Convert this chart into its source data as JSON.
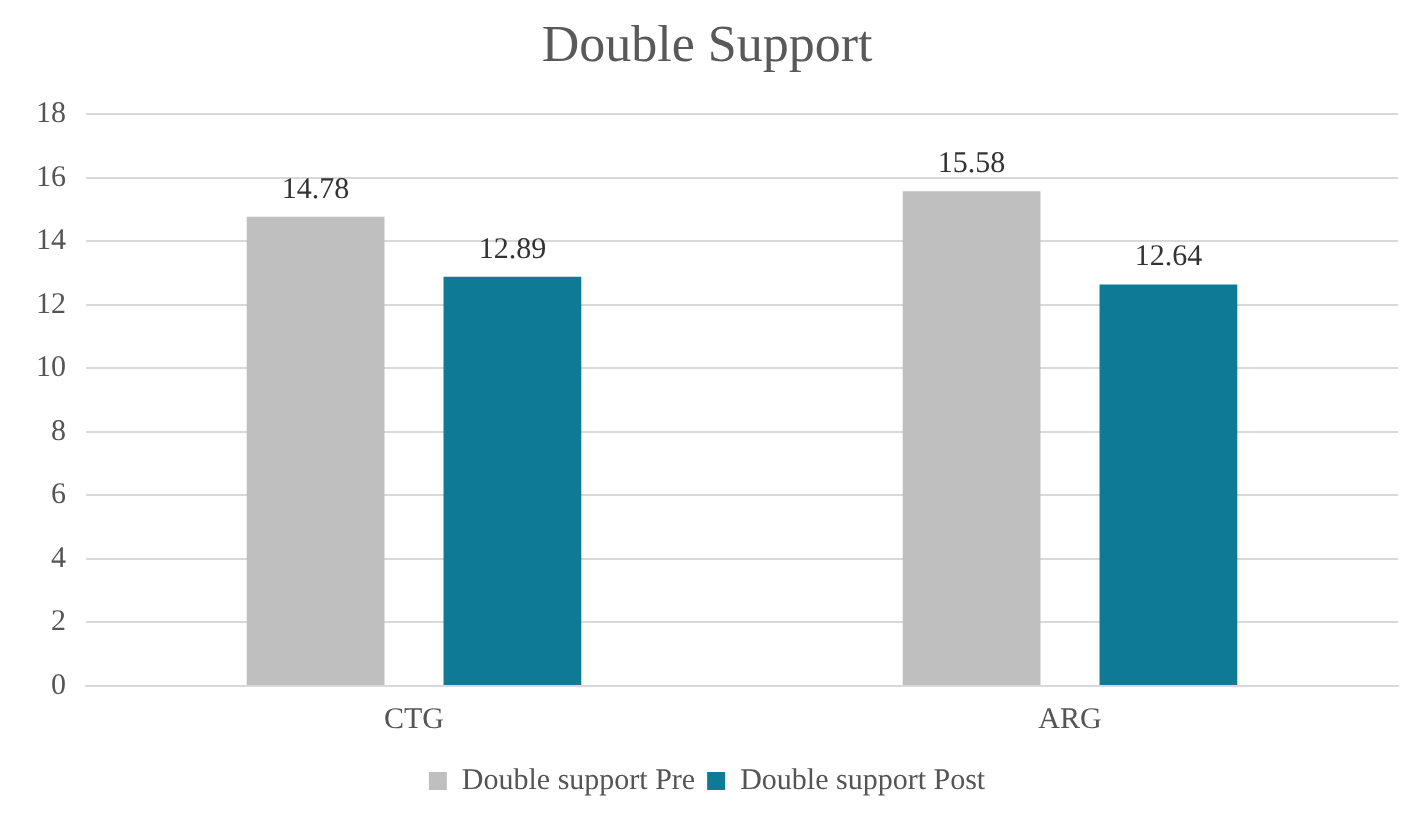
{
  "chart_data": {
    "type": "bar",
    "title": "Double Support",
    "categories": [
      "CTG",
      "ARG"
    ],
    "series": [
      {
        "name": "Double support Pre",
        "color": "#bfbfbf",
        "values": [
          14.78,
          15.58
        ]
      },
      {
        "name": "Double support Post",
        "color": "#0e7a93",
        "values": [
          12.89,
          12.64
        ]
      }
    ],
    "ylim": [
      0,
      18
    ],
    "yticks": [
      0,
      2,
      4,
      6,
      8,
      10,
      12,
      14,
      16,
      18
    ],
    "grid": "y",
    "legend": "bottom",
    "data_labels": true
  }
}
